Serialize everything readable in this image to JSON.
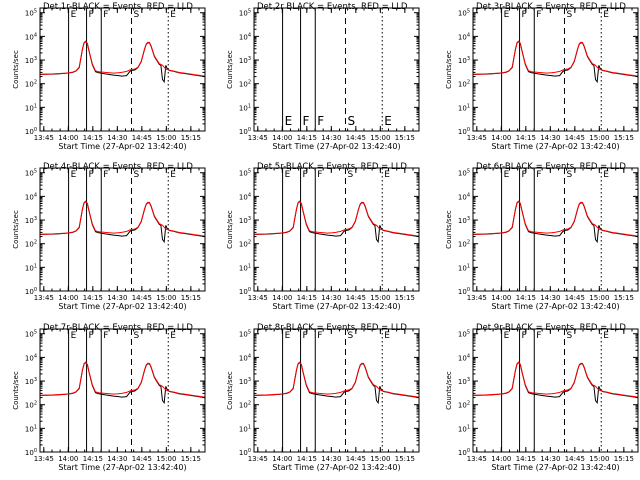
{
  "colors": {
    "events": "#000000",
    "lld": "#ff0000",
    "axes": "#000000",
    "background": "#ffffff"
  },
  "common": {
    "xlabel": "Start Time (27-Apr-02 13:42:40)",
    "ylabel": "Counts/sec",
    "ytick_exponents": [
      "0",
      "1",
      "2",
      "3",
      "4",
      "5"
    ],
    "ytick_base": "10",
    "xtick_labels": [
      "13:45",
      "14:00",
      "14:15",
      "14:30",
      "14:45",
      "15:00",
      "15:15"
    ],
    "xtick_minutes": [
      2.33,
      17.33,
      32.33,
      47.33,
      62.33,
      77.33,
      92.33
    ],
    "x_range_minutes": [
      0,
      101
    ],
    "y_range_log10": [
      0,
      5.2
    ],
    "markers": [
      {
        "label": "E",
        "x_minutes": 17.5,
        "style": "solid"
      },
      {
        "label": "F",
        "x_minutes": 28.5,
        "style": "solid"
      },
      {
        "label": "F",
        "x_minutes": 37.5,
        "style": "solid"
      },
      {
        "label": "S",
        "x_minutes": 56.0,
        "style": "dashed"
      },
      {
        "label": "E",
        "x_minutes": 78.5,
        "style": "dotted"
      }
    ]
  },
  "chart_data": [
    {
      "type": "line",
      "title": "Det 1r-BLACK = Events, RED = LLD",
      "has_data": true,
      "series": [
        {
          "name": "Events",
          "color": "#000000"
        },
        {
          "name": "LLD",
          "color": "#ff0000"
        }
      ]
    },
    {
      "type": "line",
      "title": "Det 2r BLACK = Events, RED = LLD",
      "has_data": false,
      "series": [
        {
          "name": "Events",
          "color": "#000000"
        },
        {
          "name": "LLD",
          "color": "#ff0000"
        }
      ]
    },
    {
      "type": "line",
      "title": "Det 3r-BLACK = Events, RED = LLD",
      "has_data": true,
      "series": [
        {
          "name": "Events",
          "color": "#000000"
        },
        {
          "name": "LLD",
          "color": "#ff0000"
        }
      ]
    },
    {
      "type": "line",
      "title": "Det 4r-BLACK = Events, RED = LLD",
      "has_data": true,
      "series": [
        {
          "name": "Events",
          "color": "#000000"
        },
        {
          "name": "LLD",
          "color": "#ff0000"
        }
      ]
    },
    {
      "type": "line",
      "title": "Det 5r-BLACK = Events, RED = LLD",
      "has_data": true,
      "series": [
        {
          "name": "Events",
          "color": "#000000"
        },
        {
          "name": "LLD",
          "color": "#ff0000"
        }
      ]
    },
    {
      "type": "line",
      "title": "Det 6r-BLACK = Events, RED = LLD",
      "has_data": true,
      "series": [
        {
          "name": "Events",
          "color": "#000000"
        },
        {
          "name": "LLD",
          "color": "#ff0000"
        }
      ]
    },
    {
      "type": "line",
      "title": "Det 7r-BLACK = Events, RED = LLD",
      "has_data": true,
      "series": [
        {
          "name": "Events",
          "color": "#000000"
        },
        {
          "name": "LLD",
          "color": "#ff0000"
        }
      ]
    },
    {
      "type": "line",
      "title": "Det 8r-BLACK = Events, RED = LLD",
      "has_data": true,
      "series": [
        {
          "name": "Events",
          "color": "#000000"
        },
        {
          "name": "LLD",
          "color": "#ff0000"
        }
      ]
    },
    {
      "type": "line",
      "title": "Det 9r-BLACK = Events, RED = LLD",
      "has_data": true,
      "series": [
        {
          "name": "Events",
          "color": "#000000"
        },
        {
          "name": "LLD",
          "color": "#ff0000"
        }
      ]
    }
  ],
  "lightcurve": {
    "x_minutes": [
      0,
      4,
      8,
      12,
      16,
      18,
      20,
      22,
      24,
      25,
      26,
      27,
      28,
      29,
      30,
      32,
      34,
      36,
      40,
      45,
      48,
      50,
      53,
      55,
      56,
      58,
      60,
      62,
      63,
      64,
      65,
      66,
      67,
      68,
      70,
      73,
      74,
      75,
      76,
      77,
      78,
      79,
      80,
      82,
      85,
      90,
      95,
      101
    ],
    "lld_counts": [
      250,
      255,
      260,
      270,
      280,
      290,
      310,
      350,
      500,
      1200,
      3000,
      5500,
      6300,
      5000,
      2500,
      700,
      350,
      320,
      300,
      280,
      290,
      300,
      330,
      380,
      400,
      420,
      500,
      900,
      1600,
      3000,
      4800,
      5600,
      5500,
      4000,
      1500,
      700,
      650,
      600,
      500,
      420,
      400,
      380,
      360,
      340,
      300,
      270,
      240,
      210
    ],
    "events_counts": [
      245,
      250,
      255,
      265,
      275,
      285,
      300,
      340,
      480,
      1150,
      2900,
      5300,
      6000,
      4800,
      2400,
      650,
      320,
      290,
      260,
      230,
      220,
      210,
      220,
      330,
      360,
      380,
      480,
      860,
      1550,
      2900,
      4600,
      5400,
      5300,
      3800,
      1400,
      650,
      600,
      150,
      120,
      600,
      420,
      370,
      350,
      330,
      290,
      260,
      230,
      200
    ]
  }
}
